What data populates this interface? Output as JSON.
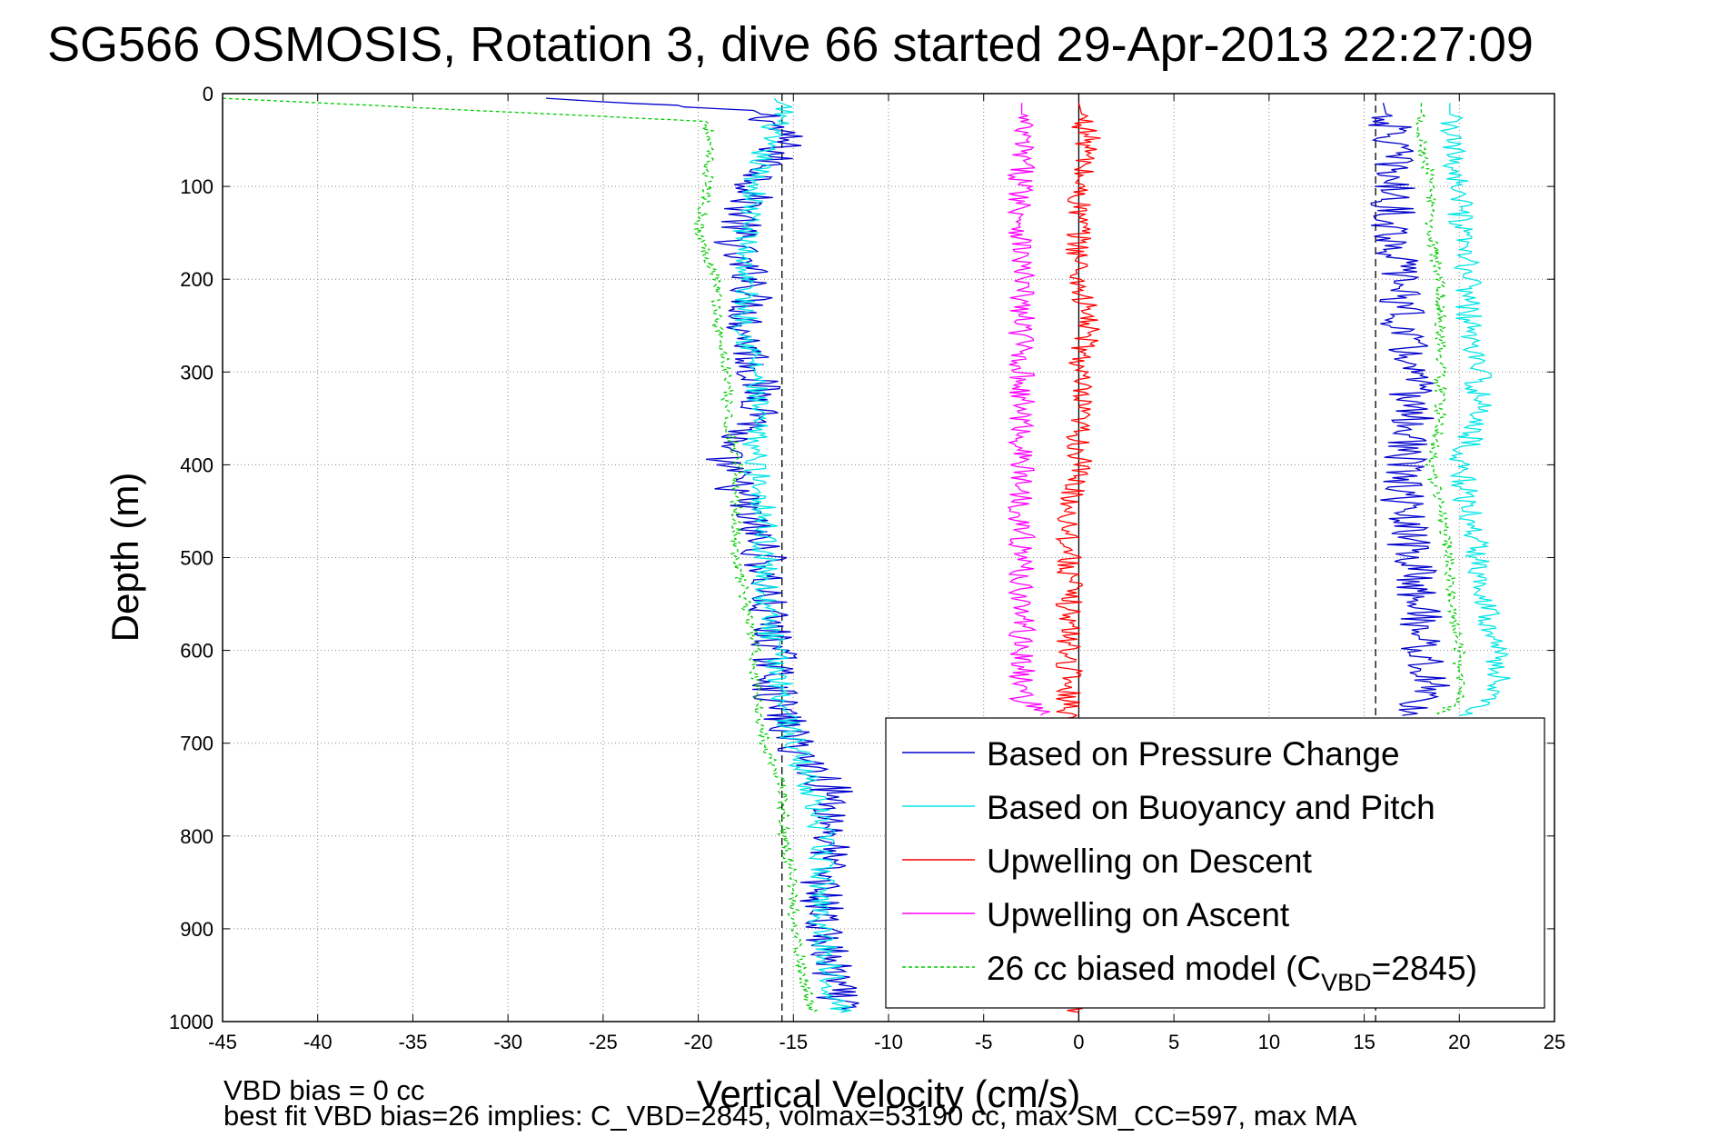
{
  "chart_data": {
    "type": "line",
    "title": "SG566 OSMOSIS, Rotation 3, dive 66 started 29-Apr-2013 22:27:09",
    "xlabel": "Vertical Velocity (cm/s)",
    "ylabel": "Depth (m)",
    "xlim": [
      -45,
      25
    ],
    "ylim": [
      1000,
      0
    ],
    "x_ticks": [
      "-45",
      "-40",
      "-35",
      "-30",
      "-25",
      "-20",
      "-15",
      "-10",
      "-5",
      "0",
      "5",
      "10",
      "15",
      "20",
      "25"
    ],
    "y_ticks": [
      "0",
      "100",
      "200",
      "300",
      "400",
      "500",
      "600",
      "700",
      "800",
      "900",
      "1000"
    ],
    "grid": true,
    "legend_position": "bottom-right",
    "reference_lines": [
      {
        "x": -15.6,
        "style": "dashed",
        "color": "#000000"
      },
      {
        "x": 15.6,
        "style": "dashed",
        "color": "#000000"
      },
      {
        "x": 0,
        "style": "solid",
        "color": "#000000"
      }
    ],
    "series": [
      {
        "name": "Based on Pressure Change",
        "color": "#0000cc",
        "style": "solid",
        "segments": [
          {
            "depth": [
              5,
              20,
              50,
              100,
              150,
              180,
              200,
              250,
              300,
              350,
              380,
              400,
              450,
              500,
              550,
              600,
              650,
              700,
              750,
              800,
              850,
              900,
              950,
              990
            ],
            "velocity": [
              -28,
              -16.5,
              -15.5,
              -17,
              -18,
              -18,
              -17,
              -17.5,
              -17,
              -16.5,
              -19,
              -18.5,
              -17.5,
              -16.5,
              -16.5,
              -16,
              -16,
              -15,
              -13,
              -13,
              -13.5,
              -13.5,
              -13,
              -12.5
            ]
          },
          {
            "depth": [
              10,
              50,
              100,
              150,
              200,
              250,
              300,
              350,
              400,
              450,
              500,
              550,
              600,
              650,
              670
            ],
            "velocity": [
              16,
              16.5,
              16.5,
              16.5,
              17,
              17,
              17.5,
              17.5,
              17,
              17,
              17.5,
              18,
              18,
              18.5,
              17
            ]
          }
        ]
      },
      {
        "name": "Based on Buoyancy and Pitch",
        "color": "#00e5e5",
        "style": "solid",
        "segments": [
          {
            "depth": [
              5,
              20,
              50,
              100,
              150,
              200,
              250,
              300,
              350,
              400,
              450,
              500,
              550,
              600,
              650,
              700,
              750,
              800,
              850,
              900,
              950,
              990
            ],
            "velocity": [
              -16,
              -15.5,
              -16.5,
              -17,
              -17.5,
              -17.5,
              -17.5,
              -17,
              -17,
              -17,
              -16.5,
              -16.5,
              -16.5,
              -16,
              -15.5,
              -15,
              -14,
              -13.5,
              -13.5,
              -13.5,
              -13,
              -12.5
            ]
          },
          {
            "depth": [
              10,
              50,
              100,
              150,
              200,
              250,
              300,
              350,
              400,
              450,
              500,
              550,
              600,
              650,
              670
            ],
            "velocity": [
              19.5,
              19.5,
              20,
              20,
              20.5,
              20.5,
              21,
              21,
              20,
              20.5,
              21,
              21.5,
              22,
              22,
              20
            ]
          }
        ]
      },
      {
        "name": "Upwelling on Descent",
        "color": "#ff0000",
        "style": "solid",
        "segments": [
          {
            "depth": [
              10,
              50,
              100,
              150,
              200,
              250,
              300,
              350,
              400,
              450,
              500,
              550,
              600,
              650,
              700,
              750,
              800,
              850,
              900,
              950,
              990
            ],
            "velocity": [
              0,
              0.5,
              0,
              0,
              0,
              0.5,
              0,
              0,
              0,
              -0.5,
              -0.5,
              -0.5,
              -0.5,
              -0.5,
              -0.5,
              -0.5,
              -0.5,
              -0.5,
              -0.5,
              -0.5,
              0
            ]
          }
        ]
      },
      {
        "name": "Upwelling on Ascent",
        "color": "#ff00ff",
        "style": "solid",
        "segments": [
          {
            "depth": [
              10,
              50,
              100,
              150,
              200,
              250,
              300,
              350,
              400,
              450,
              500,
              550,
              600,
              650,
              670
            ],
            "velocity": [
              -3,
              -3,
              -3,
              -3,
              -3,
              -3,
              -3,
              -3,
              -3,
              -3,
              -3,
              -3,
              -3,
              -3,
              -2
            ]
          }
        ]
      },
      {
        "name": "26 cc biased model (C_VBD=2845)",
        "color": "#00cc00",
        "style": "dashed",
        "segments": [
          {
            "depth": [
              5,
              30,
              100,
              150,
              200,
              250,
              300,
              350,
              400,
              450,
              500,
              550,
              600,
              650,
              700,
              750,
              800,
              850,
              900,
              950,
              990
            ],
            "velocity": [
              -45,
              -19.5,
              -19.5,
              -20,
              -19,
              -19,
              -18.5,
              -18.5,
              -18,
              -18,
              -18,
              -17.5,
              -17,
              -17,
              -16.5,
              -15.5,
              -15.5,
              -15,
              -15,
              -14.5,
              -14
            ]
          },
          {
            "depth": [
              10,
              50,
              100,
              150,
              200,
              250,
              300,
              350,
              400,
              450,
              500,
              550,
              600,
              650,
              670
            ],
            "velocity": [
              18,
              18,
              18.5,
              18.5,
              19,
              19,
              19,
              19,
              18.5,
              19,
              19.5,
              19.5,
              20,
              20,
              19
            ]
          }
        ]
      }
    ],
    "legend": [
      {
        "label": "Based on Pressure Change",
        "color": "#0000cc",
        "style": "solid"
      },
      {
        "label": "Based on Buoyancy and Pitch",
        "color": "#00e5e5",
        "style": "solid"
      },
      {
        "label": "Upwelling on Descent",
        "color": "#ff0000",
        "style": "solid"
      },
      {
        "label": "Upwelling on Ascent",
        "color": "#ff00ff",
        "style": "solid"
      },
      {
        "label_main": "26 cc biased model (C",
        "label_sub": "VBD",
        "label_tail": "=2845)",
        "color": "#00cc00",
        "style": "dashed"
      }
    ],
    "annotations": [
      "VBD bias = 0 cc",
      "best fit VBD bias=26 implies: C_VBD=2845, volmax=53190 cc, max SM_CC=597, max MA"
    ]
  }
}
